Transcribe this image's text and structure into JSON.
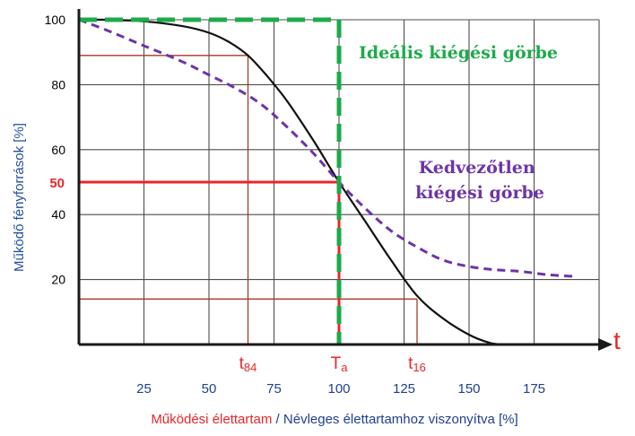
{
  "chart_data": {
    "type": "line",
    "ylabel": "Működő fényforrások [%]",
    "xlabel_part1": "Működési élettartam",
    "xlabel_sep": " / ",
    "xlabel_part2": "Névleges élettartamhoz viszonyítva [%]",
    "x_axis_symbol": "t",
    "xlim": [
      0,
      200
    ],
    "ylim": [
      0,
      100
    ],
    "x_ticks": [
      "25",
      "50",
      "75",
      "100",
      "125",
      "150",
      "175"
    ],
    "x_tick_values": [
      25,
      50,
      75,
      100,
      125,
      150,
      175
    ],
    "y_ticks": [
      "20",
      "40",
      "60",
      "80",
      "100"
    ],
    "y_tick_values": [
      20,
      40,
      60,
      80,
      100
    ],
    "y_highlight": {
      "label": "50",
      "value": 50
    },
    "grid": true,
    "markers": [
      {
        "label": "t84",
        "main": "t",
        "sub": "84",
        "x": 65,
        "y": 89
      },
      {
        "label": "Ta",
        "main": "T",
        "sub": "a",
        "x": 100,
        "y": 50
      },
      {
        "label": "t16",
        "main": "t",
        "sub": "16",
        "x": 130,
        "y": 14
      }
    ],
    "series": [
      {
        "name": "Ideális kiégési görbe",
        "style": "dashed",
        "color": "#1daa4a",
        "x": [
          0,
          100,
          100
        ],
        "y": [
          100,
          100,
          0
        ]
      },
      {
        "name": "",
        "style": "solid",
        "color": "#111111",
        "x": [
          0,
          10,
          25,
          40,
          50,
          58,
          65,
          72,
          80,
          90,
          100,
          110,
          120,
          130,
          140,
          150,
          158,
          163
        ],
        "y": [
          100,
          100,
          99.5,
          98,
          96,
          93,
          89,
          83,
          75,
          63,
          50,
          38,
          26,
          15,
          8,
          3,
          0.5,
          0
        ]
      },
      {
        "name": "Kedvezőtlen kiégési görbe",
        "style": "dashed",
        "color": "#6d34a6",
        "x": [
          0,
          10,
          25,
          40,
          50,
          60,
          70,
          80,
          90,
          100,
          110,
          120,
          130,
          140,
          150,
          160,
          170,
          180,
          190
        ],
        "y": [
          100,
          97,
          92,
          87,
          83,
          79,
          74,
          67,
          59,
          50,
          42,
          35,
          30,
          26,
          24,
          23,
          22.5,
          21.5,
          21
        ]
      }
    ],
    "colors": {
      "axis": "#1a1a1a",
      "grid": "#4d4d4d",
      "ylabel": "#1f4f9f",
      "xlabel_part1": "#e8262a",
      "xlabel_part2": "#1f3f8f",
      "highlight": "#e8262a",
      "marker_line": "#a23a2a",
      "x_axis_symbol": "#e8262a"
    }
  }
}
